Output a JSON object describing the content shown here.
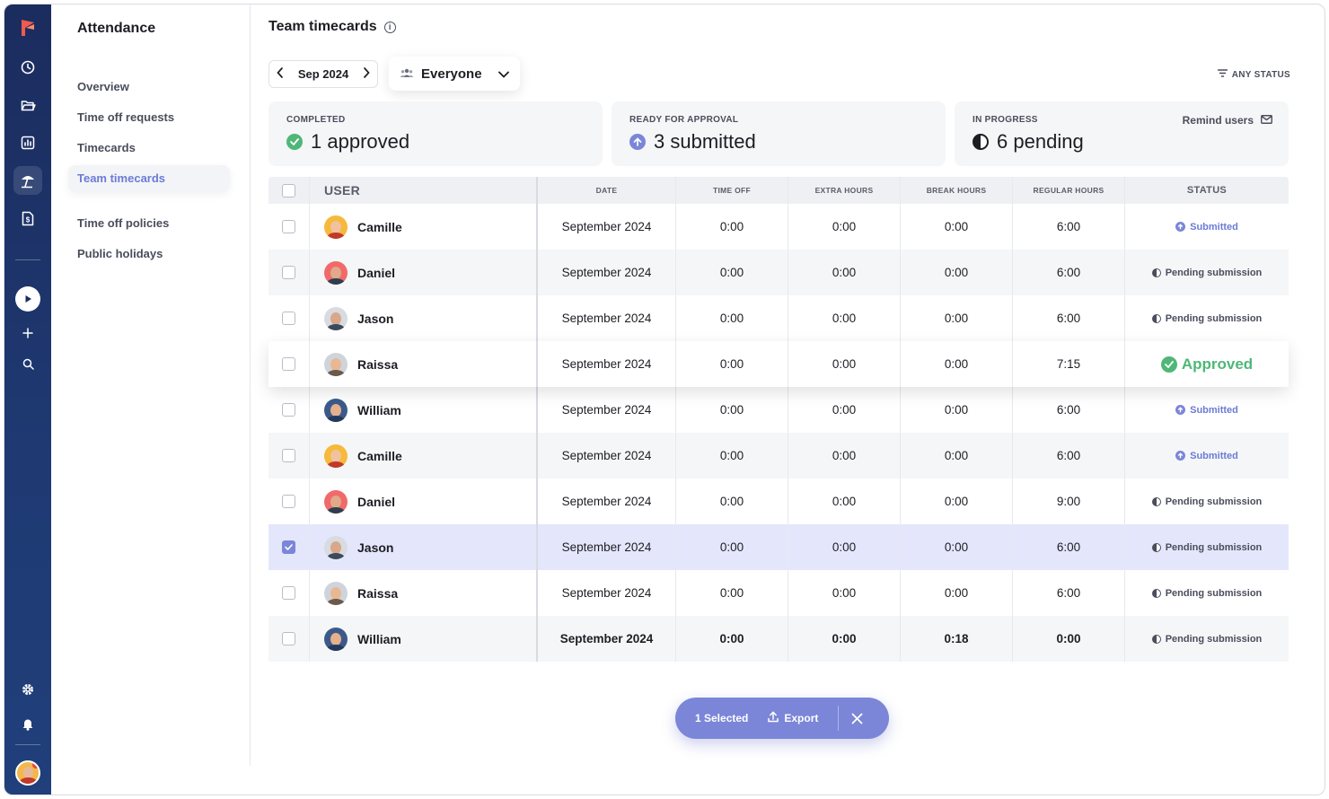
{
  "app": {
    "section_title": "Attendance"
  },
  "nav": {
    "items": [
      {
        "label": "Overview"
      },
      {
        "label": "Time off requests"
      },
      {
        "label": "Timecards"
      },
      {
        "label": "Team timecards",
        "active": true
      },
      {
        "label": "Time off policies"
      },
      {
        "label": "Public holidays"
      }
    ]
  },
  "page": {
    "title": "Team timecards"
  },
  "filters": {
    "month": "Sep 2024",
    "people": "Everyone",
    "status": "ANY STATUS"
  },
  "summary": {
    "completed": {
      "label": "COMPLETED",
      "count": "1",
      "text": "approved"
    },
    "ready": {
      "label": "READY FOR APPROVAL",
      "count": "3",
      "text": "submitted"
    },
    "progress": {
      "label": "IN PROGRESS",
      "count": "6",
      "text": "pending",
      "action": "Remind users"
    }
  },
  "table": {
    "headers": {
      "user": "USER",
      "date": "DATE",
      "time_off": "TIME OFF",
      "extra": "EXTRA HOURS",
      "break": "BREAK HOURS",
      "regular": "REGULAR HOURS",
      "status": "STATUS"
    },
    "rows": [
      {
        "user": "Camille",
        "date": "September 2024",
        "time_off": "0:00",
        "extra": "0:00",
        "break": "0:00",
        "regular": "6:00",
        "status": "Submitted"
      },
      {
        "user": "Daniel",
        "date": "September 2024",
        "time_off": "0:00",
        "extra": "0:00",
        "break": "0:00",
        "regular": "6:00",
        "status": "Pending submission"
      },
      {
        "user": "Jason",
        "date": "September 2024",
        "time_off": "0:00",
        "extra": "0:00",
        "break": "0:00",
        "regular": "6:00",
        "status": "Pending submission"
      },
      {
        "user": "Raissa",
        "date": "September 2024",
        "time_off": "0:00",
        "extra": "0:00",
        "break": "0:00",
        "regular": "7:15",
        "status": "Approved"
      },
      {
        "user": "William",
        "date": "September 2024",
        "time_off": "0:00",
        "extra": "0:00",
        "break": "0:00",
        "regular": "6:00",
        "status": "Submitted"
      },
      {
        "user": "Camille",
        "date": "September 2024",
        "time_off": "0:00",
        "extra": "0:00",
        "break": "0:00",
        "regular": "6:00",
        "status": "Submitted"
      },
      {
        "user": "Daniel",
        "date": "September 2024",
        "time_off": "0:00",
        "extra": "0:00",
        "break": "0:00",
        "regular": "9:00",
        "status": "Pending submission"
      },
      {
        "user": "Jason",
        "date": "September 2024",
        "time_off": "0:00",
        "extra": "0:00",
        "break": "0:00",
        "regular": "6:00",
        "status": "Pending submission",
        "checked": true
      },
      {
        "user": "Raissa",
        "date": "September 2024",
        "time_off": "0:00",
        "extra": "0:00",
        "break": "0:00",
        "regular": "6:00",
        "status": "Pending submission"
      },
      {
        "user": "William",
        "date": "September 2024",
        "time_off": "0:00",
        "extra": "0:00",
        "break": "0:18",
        "regular": "0:00",
        "status": "Pending submission"
      }
    ]
  },
  "selection": {
    "count_label": "1 Selected",
    "export_label": "Export"
  },
  "colors": {
    "accent": "#7b86d8",
    "rail": "#1b2c5e",
    "approved": "#4fb777",
    "submitted": "#6b7bd6"
  }
}
